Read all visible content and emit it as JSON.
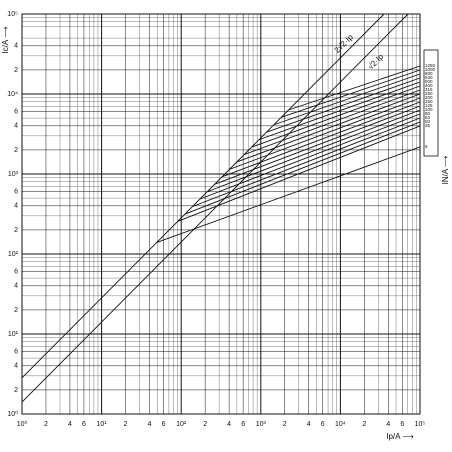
{
  "chart_data": {
    "type": "line",
    "xlabel": "Ip/A ⟶",
    "ylabel": "Ic/A ⟶",
    "legend_title": "IN/A ⟶",
    "log_x": true,
    "log_y": true,
    "grid": true,
    "color": "#111111",
    "xlim": [
      1,
      100000
    ],
    "ylim": [
      1,
      100000
    ],
    "xticks": [
      {
        "value": 1,
        "label": "10⁰"
      },
      2,
      4,
      6,
      {
        "value": 10,
        "label": "10¹"
      },
      {
        "value": 20,
        "label": "2"
      },
      {
        "value": 40,
        "label": "4"
      },
      {
        "value": 60,
        "label": "6"
      },
      {
        "value": 100,
        "label": "10²"
      },
      {
        "value": 200,
        "label": "2"
      },
      {
        "value": 400,
        "label": "4"
      },
      {
        "value": 600,
        "label": "6"
      },
      {
        "value": 1000,
        "label": "10³"
      },
      {
        "value": 2000,
        "label": "2"
      },
      {
        "value": 4000,
        "label": "4"
      },
      {
        "value": 6000,
        "label": "6"
      },
      {
        "value": 10000,
        "label": "10⁴"
      },
      {
        "value": 20000,
        "label": "2"
      },
      {
        "value": 40000,
        "label": "4"
      },
      {
        "value": 60000,
        "label": "6"
      },
      {
        "value": 100000,
        "label": "10⁵"
      }
    ],
    "yticks": [
      {
        "value": 1,
        "label": "10⁰"
      },
      2,
      4,
      6,
      {
        "value": 10,
        "label": "10¹"
      },
      {
        "value": 20,
        "label": "2"
      },
      {
        "value": 40,
        "label": "4"
      },
      {
        "value": 60,
        "label": "6"
      },
      {
        "value": 100,
        "label": "10²"
      },
      {
        "value": 200,
        "label": "2"
      },
      {
        "value": 400,
        "label": "4"
      },
      {
        "value": 600,
        "label": "6"
      },
      {
        "value": 1000,
        "label": "10³"
      },
      {
        "value": 2000,
        "label": "2"
      },
      {
        "value": 4000,
        "label": "4"
      },
      {
        "value": 6000,
        "label": "6"
      },
      {
        "value": 10000,
        "label": "10⁴"
      },
      {
        "value": 20000,
        "label": "2"
      },
      {
        "value": 40000,
        "label": "4"
      },
      {
        "value": 100000,
        "label": "10⁵"
      }
    ],
    "minor_grid": [
      3,
      5,
      7,
      8,
      9,
      30,
      50,
      70,
      80,
      90,
      300,
      500,
      700,
      800,
      900,
      3000,
      5000,
      7000,
      8000,
      9000,
      30000,
      50000,
      70000,
      80000,
      90000
    ],
    "reference_lines": [
      {
        "name": "2√2·Ip",
        "x": [
          1,
          35355
        ],
        "values": [
          2.83,
          100000
        ]
      },
      {
        "name": "√2·Ip",
        "x": [
          1,
          70711
        ],
        "values": [
          1.41,
          100000
        ]
      }
    ],
    "series": [
      {
        "name": "1250",
        "x": [
          2239,
          100000
        ],
        "values": [
          6332,
          22387
        ]
      },
      {
        "name": "1000",
        "x": [
          1807,
          100000
        ],
        "values": [
          5111,
          19953
        ]
      },
      {
        "name": "800",
        "x": [
          1459,
          100000
        ],
        "values": [
          4126,
          17783
        ]
      },
      {
        "name": "630",
        "x": [
          1178,
          100000
        ],
        "values": [
          3331,
          15849
        ]
      },
      {
        "name": "500",
        "x": [
          951,
          100000
        ],
        "values": [
          2689,
          14125
        ]
      },
      {
        "name": "400",
        "x": [
          767,
          100000
        ],
        "values": [
          2170,
          12589
        ]
      },
      {
        "name": "315",
        "x": [
          619,
          100000
        ],
        "values": [
          1752,
          11220
        ]
      },
      {
        "name": "250",
        "x": [
          500,
          100000
        ],
        "values": [
          1414,
          10000
        ]
      },
      {
        "name": "200",
        "x": [
          404,
          100000
        ],
        "values": [
          1142,
          8913
        ]
      },
      {
        "name": "160",
        "x": [
          326,
          100000
        ],
        "values": [
          922,
          7943
        ]
      },
      {
        "name": "125",
        "x": [
          263,
          100000
        ],
        "values": [
          744,
          7079
        ]
      },
      {
        "name": "100",
        "x": [
          212,
          100000
        ],
        "values": [
          600,
          6310
        ]
      },
      {
        "name": "80",
        "x": [
          171,
          100000
        ],
        "values": [
          485,
          5623
        ]
      },
      {
        "name": "63",
        "x": [
          138,
          100000
        ],
        "values": [
          391,
          5012
        ]
      },
      {
        "name": "50",
        "x": [
          112,
          100000
        ],
        "values": [
          316,
          4467
        ]
      },
      {
        "name": "35",
        "x": [
          90,
          100000
        ],
        "values": [
          255,
          3981
        ]
      },
      {
        "name": "6",
        "x": [
          49,
          100000
        ],
        "values": [
          139,
          2180
        ]
      }
    ]
  }
}
